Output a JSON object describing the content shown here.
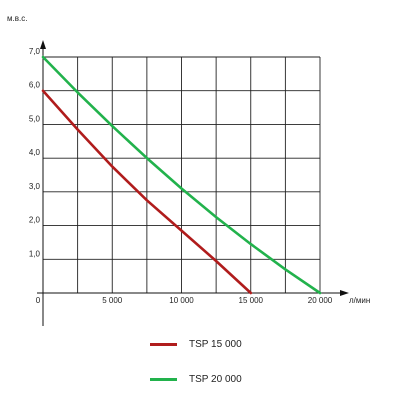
{
  "chart_data": {
    "type": "line",
    "xlabel": "л/мин",
    "ylabel": "м.в.с.",
    "xlim": [
      0,
      20000
    ],
    "ylim": [
      0,
      7
    ],
    "x_ticks": [
      0,
      2500,
      5000,
      7500,
      10000,
      12500,
      15000,
      17500,
      20000
    ],
    "x_tick_labels": [
      {
        "value": 0,
        "text": "0"
      },
      {
        "value": 5000,
        "text": "5 000"
      },
      {
        "value": 10000,
        "text": "10 000"
      },
      {
        "value": 15000,
        "text": "15 000"
      },
      {
        "value": 20000,
        "text": "20 000"
      }
    ],
    "y_tick_labels": [
      {
        "value": 1,
        "text": "1,0"
      },
      {
        "value": 2,
        "text": "2,0"
      },
      {
        "value": 3,
        "text": "3,0"
      },
      {
        "value": 4,
        "text": "4,0"
      },
      {
        "value": 5,
        "text": "5,0"
      },
      {
        "value": 6,
        "text": "6,0"
      },
      {
        "value": 7,
        "text": "7,0"
      }
    ],
    "grid": true,
    "legend_position": "bottom",
    "series": [
      {
        "name": "TSP 15 000",
        "color": "#b01c1c",
        "x": [
          0,
          2500,
          5000,
          7500,
          10000,
          12500,
          15000
        ],
        "y": [
          6.0,
          4.85,
          3.75,
          2.75,
          1.85,
          0.95,
          0.0
        ]
      },
      {
        "name": "TSP 20 000",
        "color": "#22b24c",
        "x": [
          0,
          2500,
          5000,
          7500,
          10000,
          12500,
          15000,
          17500,
          20000
        ],
        "y": [
          7.0,
          5.95,
          4.95,
          4.0,
          3.1,
          2.25,
          1.45,
          0.7,
          0.0
        ]
      }
    ]
  }
}
